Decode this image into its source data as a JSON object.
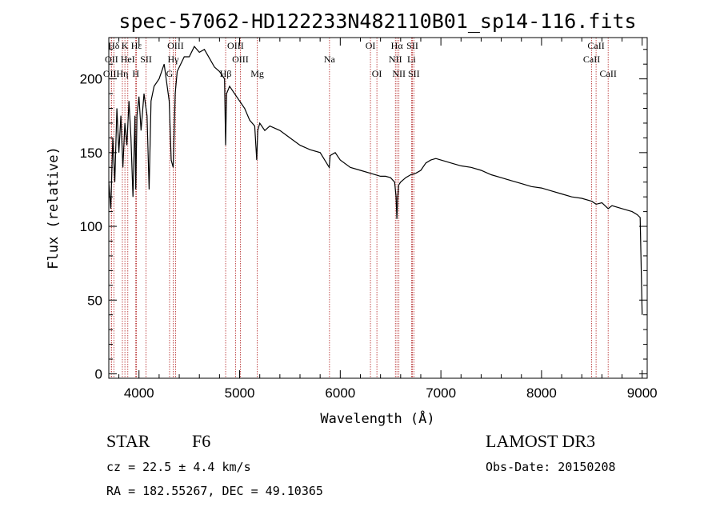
{
  "chart_data": {
    "type": "line",
    "title": "spec-57062-HD122233N482110B01_sp14-116.fits",
    "xlabel": "Wavelength (Å)",
    "ylabel": "Flux (relative)",
    "xlim": [
      3700,
      9050
    ],
    "ylim": [
      -3,
      228
    ],
    "xticks": [
      4000,
      5000,
      6000,
      7000,
      8000,
      9000
    ],
    "yticks": [
      0,
      50,
      100,
      150,
      200
    ],
    "series": [
      {
        "name": "spectrum",
        "x": [
          3700,
          3720,
          3740,
          3760,
          3780,
          3800,
          3820,
          3840,
          3860,
          3880,
          3900,
          3920,
          3940,
          3960,
          3968,
          3980,
          4000,
          4020,
          4050,
          4080,
          4101,
          4120,
          4150,
          4200,
          4250,
          4300,
          4320,
          4340,
          4360,
          4380,
          4400,
          4450,
          4500,
          4550,
          4600,
          4650,
          4700,
          4750,
          4800,
          4850,
          4861,
          4870,
          4900,
          4950,
          5000,
          5050,
          5100,
          5150,
          5170,
          5180,
          5200,
          5250,
          5300,
          5400,
          5500,
          5600,
          5700,
          5800,
          5890,
          5900,
          5950,
          6000,
          6100,
          6200,
          6300,
          6400,
          6450,
          6500,
          6540,
          6555,
          6563,
          6570,
          6580,
          6600,
          6650,
          6700,
          6750,
          6800,
          6850,
          6900,
          6950,
          7000,
          7100,
          7200,
          7300,
          7400,
          7500,
          7600,
          7700,
          7800,
          7900,
          8000,
          8100,
          8200,
          8300,
          8400,
          8500,
          8542,
          8600,
          8662,
          8700,
          8800,
          8900,
          8950,
          8980,
          9000
        ],
        "y": [
          130,
          112,
          160,
          130,
          180,
          150,
          175,
          140,
          170,
          155,
          185,
          160,
          120,
          175,
          125,
          175,
          188,
          165,
          190,
          175,
          125,
          185,
          195,
          200,
          210,
          185,
          145,
          140,
          190,
          205,
          208,
          215,
          215,
          222,
          218,
          220,
          214,
          208,
          205,
          200,
          155,
          190,
          195,
          190,
          185,
          180,
          172,
          168,
          145,
          165,
          170,
          165,
          168,
          165,
          160,
          155,
          152,
          150,
          140,
          148,
          150,
          145,
          140,
          138,
          136,
          134,
          134,
          133,
          130,
          120,
          105,
          118,
          128,
          130,
          133,
          135,
          136,
          138,
          143,
          145,
          146,
          145,
          143,
          141,
          140,
          138,
          135,
          133,
          131,
          129,
          127,
          126,
          124,
          122,
          120,
          119,
          117,
          115,
          116,
          112,
          114,
          112,
          110,
          108,
          106,
          40
        ]
      }
    ],
    "emission_lines": [
      {
        "label": "Hδ",
        "x": 3750,
        "row": 1
      },
      {
        "label": "K",
        "x": 3860,
        "row": 1
      },
      {
        "label": "Hε",
        "x": 3975,
        "row": 1
      },
      {
        "label": "OIII",
        "x": 4363,
        "row": 1
      },
      {
        "label": "OIII",
        "x": 4959,
        "row": 1
      },
      {
        "label": "OI",
        "x": 6300,
        "row": 1
      },
      {
        "label": "Hα",
        "x": 6563,
        "row": 1
      },
      {
        "label": "SII",
        "x": 6717,
        "row": 1
      },
      {
        "label": "CaII",
        "x": 8542,
        "row": 1
      },
      {
        "label": "OII",
        "x": 3727,
        "row": 2
      },
      {
        "label": "HeI",
        "x": 3889,
        "row": 2
      },
      {
        "label": "SII",
        "x": 4070,
        "row": 2
      },
      {
        "label": "Hγ",
        "x": 4340,
        "row": 2
      },
      {
        "label": "OIII",
        "x": 5007,
        "row": 2
      },
      {
        "label": "Na",
        "x": 5893,
        "row": 2
      },
      {
        "label": "NII",
        "x": 6548,
        "row": 2
      },
      {
        "label": "Li",
        "x": 6708,
        "row": 2
      },
      {
        "label": "CaII",
        "x": 8498,
        "row": 2
      },
      {
        "label": "OIII",
        "x": 3725,
        "row": 3
      },
      {
        "label": "Hη",
        "x": 3835,
        "row": 3
      },
      {
        "label": "H",
        "x": 3968,
        "row": 3
      },
      {
        "label": "G",
        "x": 4304,
        "row": 3
      },
      {
        "label": "Hβ",
        "x": 4861,
        "row": 3
      },
      {
        "label": "Mg",
        "x": 5175,
        "row": 3
      },
      {
        "label": "OI",
        "x": 6364,
        "row": 3
      },
      {
        "label": "NII",
        "x": 6583,
        "row": 3
      },
      {
        "label": "SII",
        "x": 6731,
        "row": 3
      },
      {
        "label": "CaII",
        "x": 8662,
        "row": 3
      }
    ],
    "grid": false,
    "legend": "none"
  },
  "footer": {
    "object_type": "STAR",
    "subclass": "F6",
    "survey": "LAMOST DR3",
    "cz": "cz = 22.5 ± 4.4 km/s",
    "obs_date": "Obs-Date: 20150208",
    "coords": "RA = 182.55267, DEC =  49.10365"
  },
  "colors": {
    "spectrum": "#000000",
    "line_markers": "#b22222",
    "axes": "#000000"
  }
}
